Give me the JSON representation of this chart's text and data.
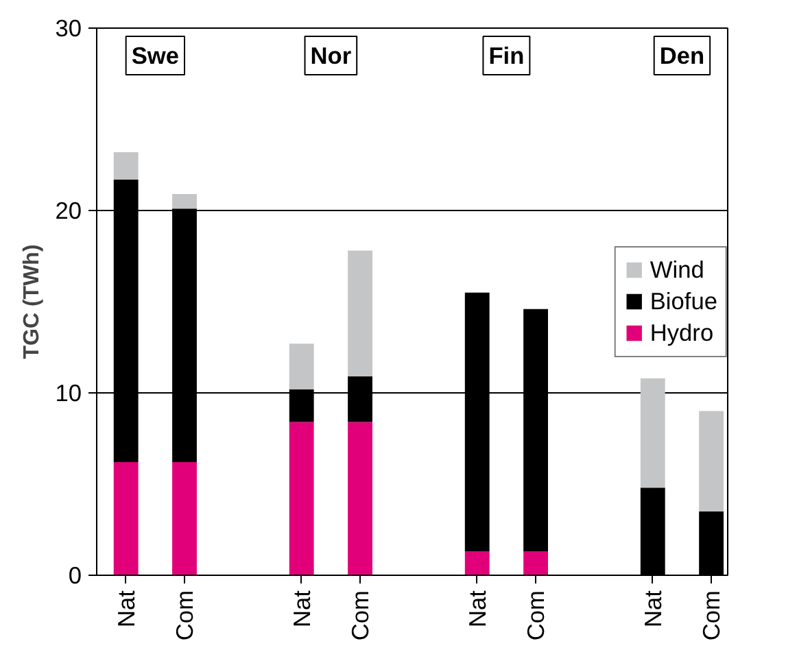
{
  "chart_data": {
    "type": "bar",
    "stacked": true,
    "ylabel": "TGC (TWh)",
    "categories": [
      "Nat",
      "Com",
      "Nat",
      "Com",
      "Nat",
      "Com",
      "Nat",
      "Com"
    ],
    "series": [
      {
        "name": "Hydro",
        "color": "#e2007a",
        "values": [
          6.2,
          6.2,
          8.4,
          8.4,
          1.3,
          1.3,
          0,
          0
        ]
      },
      {
        "name": "Biofue",
        "color": "#000000",
        "values": [
          15.5,
          13.9,
          1.8,
          2.5,
          14.2,
          13.3,
          4.8,
          3.5
        ]
      },
      {
        "name": "Wind",
        "color": "#c4c5c7",
        "values": [
          1.5,
          0.8,
          2.5,
          6.9,
          0,
          0,
          6.0,
          5.5
        ]
      }
    ],
    "annotations": [
      "Swe",
      "Nor",
      "Fin",
      "Den"
    ],
    "ylim": [
      0,
      30
    ],
    "yticks": [
      0,
      10,
      20,
      30
    ],
    "grid": "y",
    "legend": "right"
  }
}
